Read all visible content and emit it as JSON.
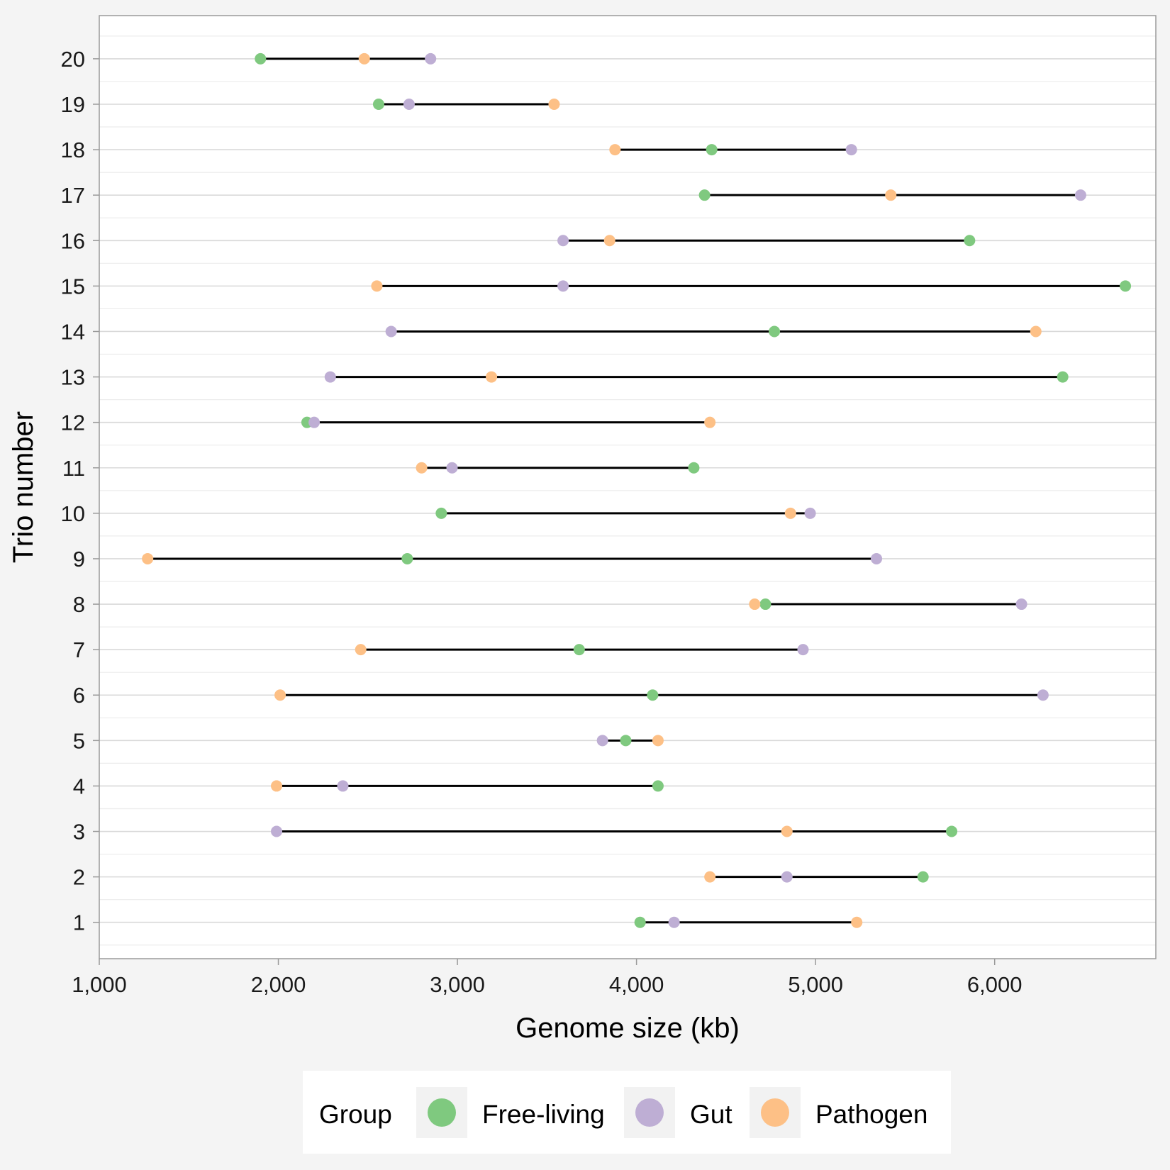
{
  "chart_data": {
    "type": "scatter",
    "subtype": "dumbbell",
    "title": "",
    "xlabel": "Genome size (kb)",
    "ylabel": "Trio number",
    "xlim": [
      1000,
      6900
    ],
    "ylim": [
      0.2,
      20.95
    ],
    "xticks": [
      1000,
      2000,
      3000,
      4000,
      5000,
      6000
    ],
    "xtick_labels": [
      "1,000",
      "2,000",
      "3,000",
      "4,000",
      "5,000",
      "6,000"
    ],
    "yticks": [
      1,
      2,
      3,
      4,
      5,
      6,
      7,
      8,
      9,
      10,
      11,
      12,
      13,
      14,
      15,
      16,
      17,
      18,
      19,
      20
    ],
    "ytick_labels": [
      "1",
      "2",
      "3",
      "4",
      "5",
      "6",
      "7",
      "8",
      "9",
      "10",
      "11",
      "12",
      "13",
      "14",
      "15",
      "16",
      "17",
      "18",
      "19",
      "20"
    ],
    "grid": true,
    "legend": {
      "title": "Group",
      "position": "bottom",
      "entries": [
        {
          "key": "free_living",
          "label": "Free-living",
          "color": "#7fc97f"
        },
        {
          "key": "gut",
          "label": "Gut",
          "color": "#beaed4"
        },
        {
          "key": "pathogen",
          "label": "Pathogen",
          "color": "#fdc086"
        }
      ]
    },
    "series": [
      {
        "name": "Free-living",
        "key": "free_living",
        "color": "#7fc97f",
        "values": [
          4020,
          5600,
          5760,
          4120,
          3940,
          4090,
          3680,
          4720,
          2720,
          2910,
          4320,
          2160,
          6380,
          4770,
          6730,
          5860,
          4380,
          4420,
          2560,
          1900
        ]
      },
      {
        "name": "Gut",
        "key": "gut",
        "color": "#beaed4",
        "values": [
          4210,
          4840,
          1990,
          2360,
          3810,
          6270,
          4930,
          6150,
          5340,
          4970,
          2970,
          2200,
          2290,
          2630,
          3590,
          3590,
          6480,
          5200,
          2730,
          2850
        ]
      },
      {
        "name": "Pathogen",
        "key": "pathogen",
        "color": "#fdc086",
        "values": [
          5230,
          4410,
          4840,
          1990,
          4120,
          2010,
          2460,
          4660,
          1270,
          4860,
          2800,
          4410,
          3190,
          6230,
          2550,
          3850,
          5420,
          3880,
          3540,
          2480
        ]
      }
    ],
    "trios": [
      1,
      2,
      3,
      4,
      5,
      6,
      7,
      8,
      9,
      10,
      11,
      12,
      13,
      14,
      15,
      16,
      17,
      18,
      19,
      20
    ]
  }
}
